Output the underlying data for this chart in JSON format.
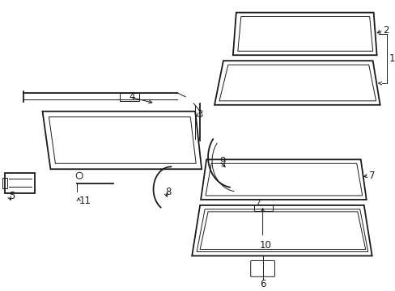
{
  "bg": "#ffffff",
  "lc": "#1a1a1a",
  "fig_w": 4.89,
  "fig_h": 3.6,
  "dpi": 100,
  "font_size": 8.5
}
